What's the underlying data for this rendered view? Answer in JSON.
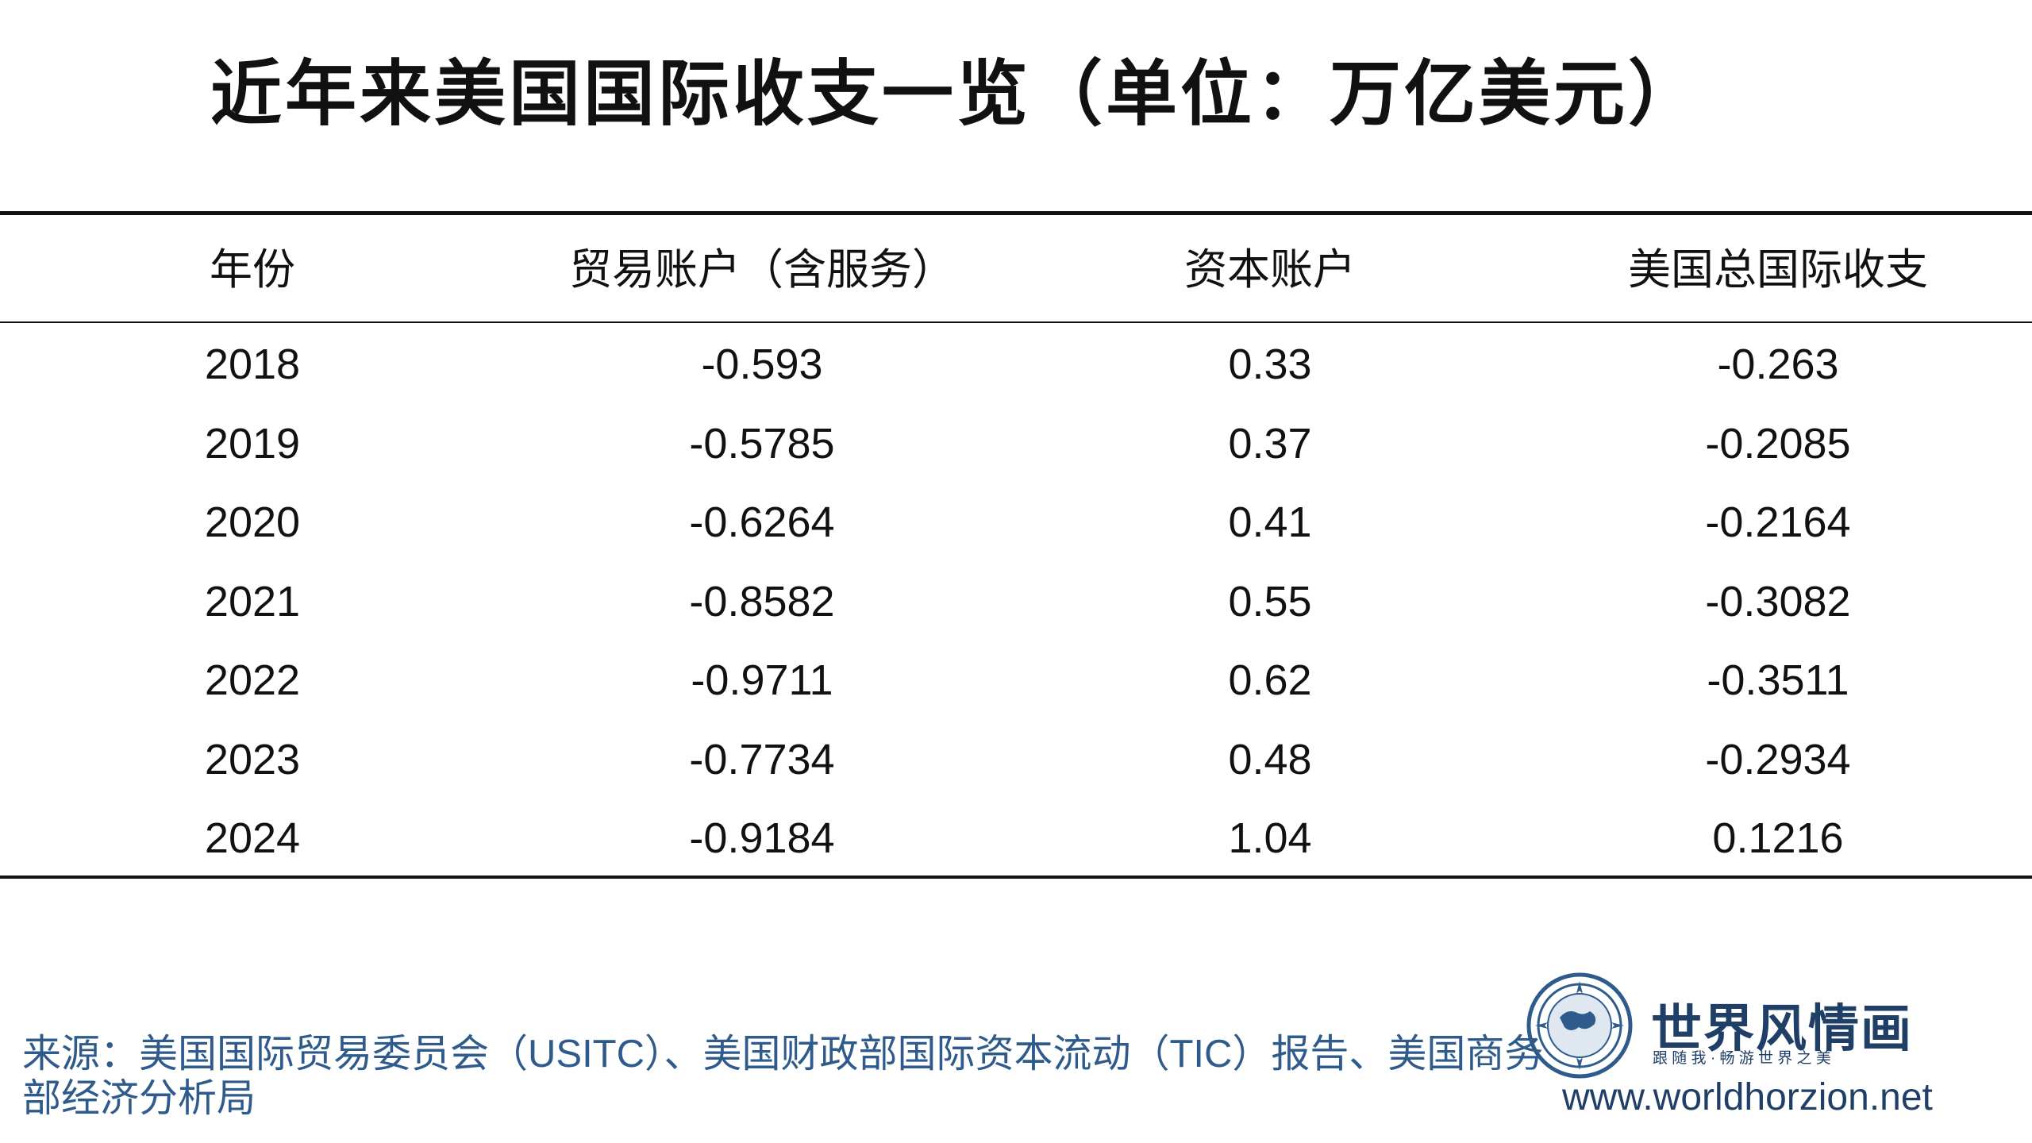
{
  "title": "近年来美国国际收支一览（单位：万亿美元）",
  "table": {
    "header": [
      "年份",
      "贸易账户（含服务）",
      "资本账户",
      "美国总国际收支"
    ],
    "rows": [
      [
        "2018",
        "-0.593",
        "0.33",
        "-0.263"
      ],
      [
        "2019",
        "-0.5785",
        "0.37",
        "-0.2085"
      ],
      [
        "2020",
        "-0.6264",
        "0.41",
        "-0.2164"
      ],
      [
        "2021",
        "-0.8582",
        "0.55",
        "-0.3082"
      ],
      [
        "2022",
        "-0.9711",
        "0.62",
        "-0.3511"
      ],
      [
        "2023",
        "-0.7734",
        "0.48",
        "-0.2934"
      ],
      [
        "2024",
        "-0.9184",
        "1.04",
        "0.1216"
      ]
    ]
  },
  "source": "来源：美国国际贸易委员会（USITC）、美国财政部国际资本流动（TIC）报告、美国商务部经济分析局",
  "logo": {
    "name": "世界风情画",
    "slogan": "跟 随 我 · 畅 游 世 界 之 美",
    "url": "www.worldhorzion.net"
  }
}
